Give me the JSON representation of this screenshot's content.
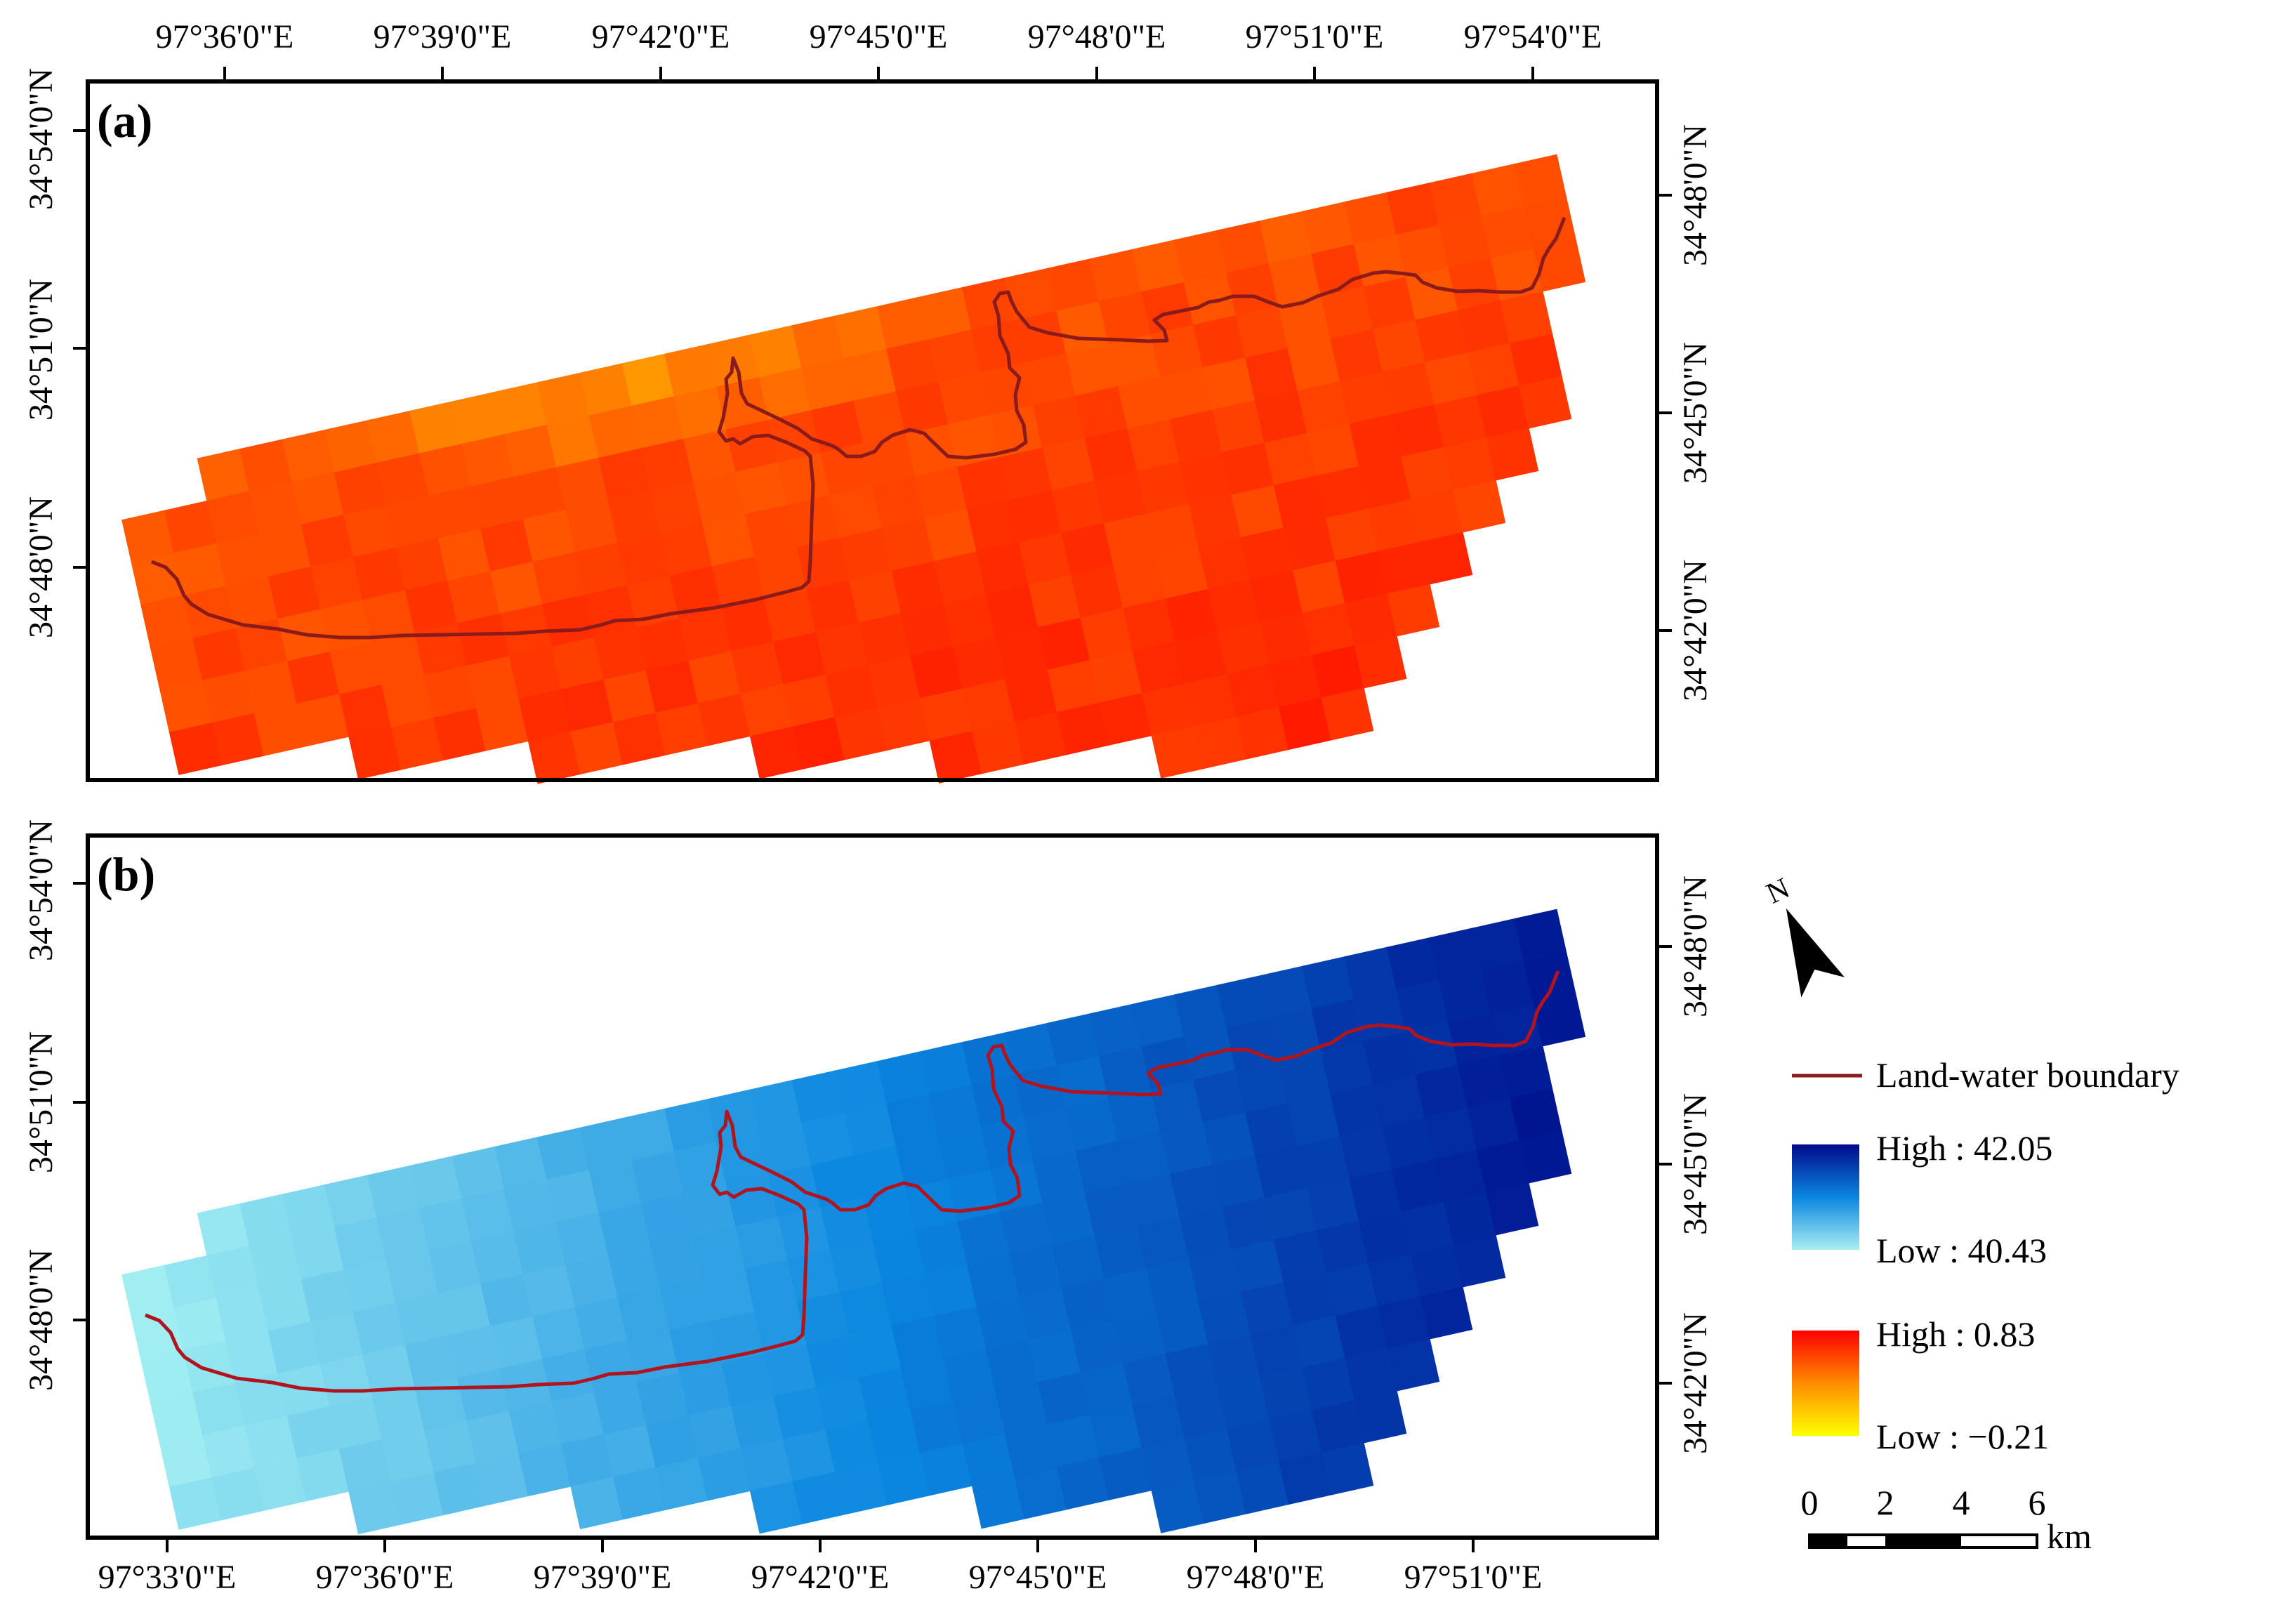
{
  "panels": [
    {
      "label": "(a)",
      "top_ticks": [
        "97°36'0\"E",
        "97°39'0\"E",
        "97°42'0\"E",
        "97°45'0\"E",
        "97°48'0\"E",
        "97°51'0\"E",
        "97°54'0\"E"
      ],
      "left_ticks": [
        "34°54'0\"N",
        "34°51'0\"N",
        "34°48'0\"N"
      ],
      "right_ticks": [
        "34°48'0\"N",
        "34°45'0\"N",
        "34°42'0\"N"
      ],
      "field": "temperature-gradient",
      "palette": [
        "#ffff00",
        "#ff9a00",
        "#ff1a00"
      ]
    },
    {
      "label": "(b)",
      "left_ticks": [
        "34°54'0\"N",
        "34°51'0\"N",
        "34°48'0\"N"
      ],
      "right_ticks": [
        "34°48'0\"N",
        "34°45'0\"N",
        "34°42'0\"N"
      ],
      "bottom_ticks": [
        "97°33'0\"E",
        "97°36'0\"E",
        "97°39'0\"E",
        "97°42'0\"E",
        "97°45'0\"E",
        "97°48'0\"E",
        "97°51'0\"E"
      ],
      "field": "east-west-gradient",
      "palette": [
        "#a0eef2",
        "#0a86e0",
        "#000a8a"
      ]
    }
  ],
  "north_arrow": {
    "label": "N",
    "icon": "north-arrow-icon"
  },
  "legend": {
    "boundary_label": "Land-water boundary",
    "boundary_color": "#8b1a1a",
    "blue_high": "High : 42.05",
    "blue_low": "Low : 40.43",
    "red_high": "High : 0.83",
    "red_low": "Low : −0.21"
  },
  "scalebar": {
    "ticks": [
      "0",
      "2",
      "4",
      "6"
    ],
    "unit": "km"
  }
}
